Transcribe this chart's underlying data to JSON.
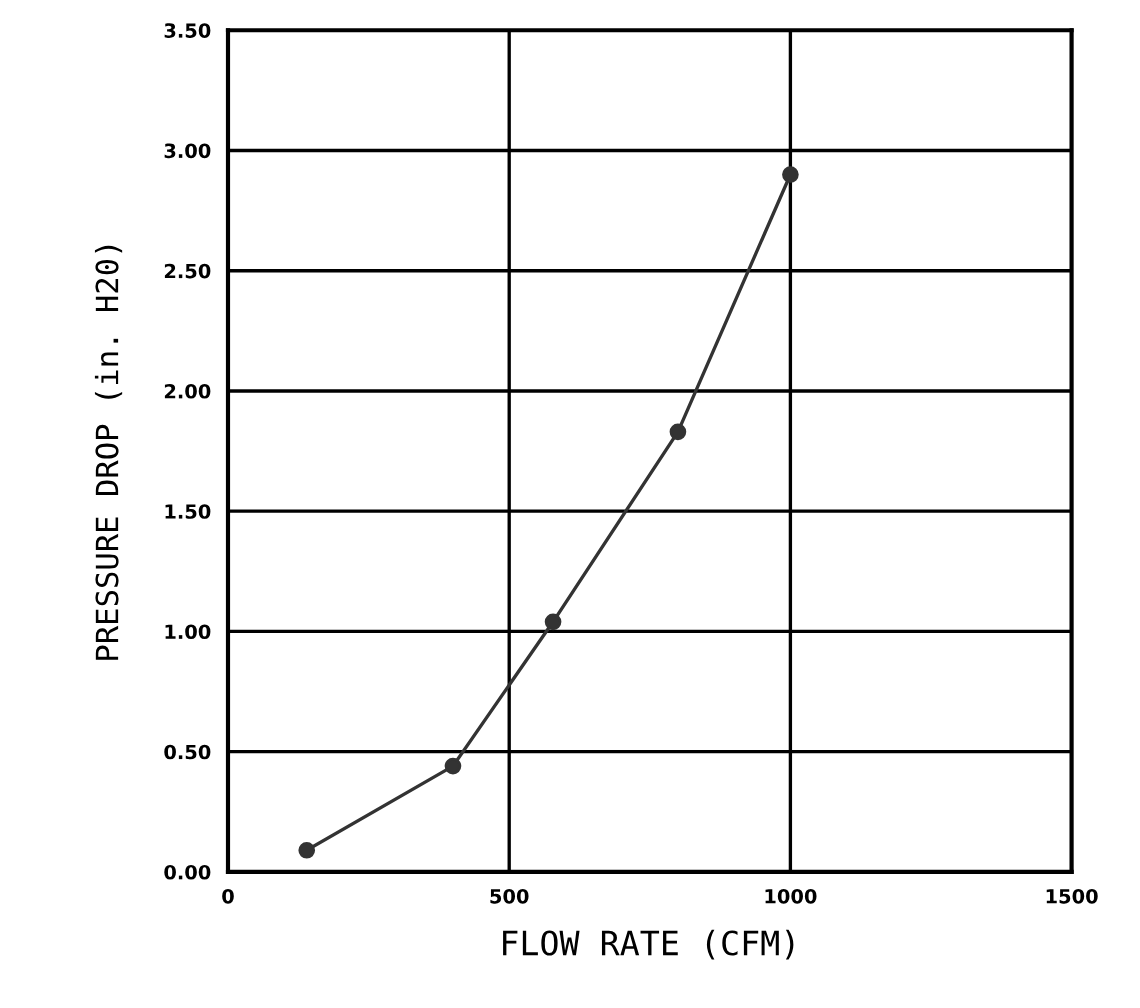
{
  "chart_data": {
    "type": "line",
    "xlabel": "FLOW RATE (CFM)",
    "ylabel": "PRESSURE DROP (in. H20)",
    "x": [
      140,
      400,
      578,
      800,
      1000
    ],
    "series": [
      {
        "color": "#333333",
        "values": [
          0.09,
          0.44,
          1.04,
          1.83,
          2.9
        ]
      }
    ],
    "xlim": [
      0,
      1500
    ],
    "xticks": [
      0,
      500,
      1000,
      1500
    ],
    "ylim": [
      0,
      3.5
    ],
    "yticks": [
      {
        "value": 0,
        "label": "0.00"
      },
      {
        "value": 0.5,
        "label": "0.50"
      },
      {
        "value": 1,
        "label": "1.00"
      },
      {
        "value": 1.5,
        "label": "1.50"
      },
      {
        "value": 2,
        "label": "2.00"
      },
      {
        "value": 2.5,
        "label": "2.50"
      },
      {
        "value": 3,
        "label": "3.00"
      },
      {
        "value": 3.5,
        "label": "3.50"
      }
    ],
    "grid": true,
    "marker": "circle",
    "line_style": "solid"
  }
}
